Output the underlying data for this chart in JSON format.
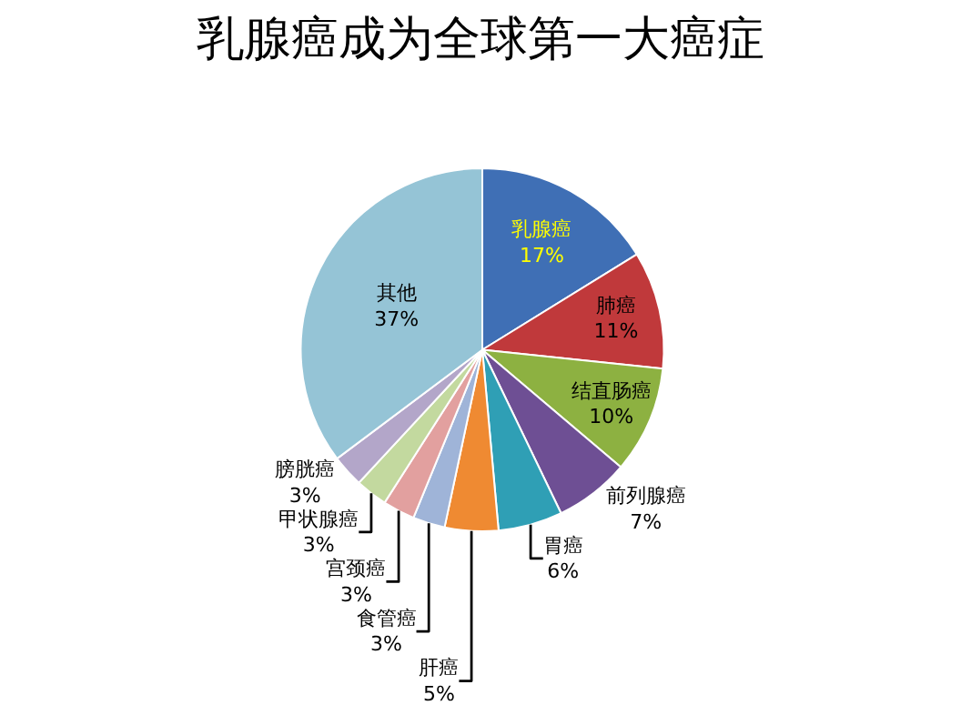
{
  "chart_data": {
    "type": "pie",
    "title": "乳腺癌成为全球第一大癌症",
    "categories": [
      "乳腺癌",
      "肺癌",
      "结直肠癌",
      "前列腺癌",
      "胃癌",
      "肝癌",
      "食管癌",
      "宫颈癌",
      "甲状腺癌",
      "膀胱癌",
      "其他"
    ],
    "values": [
      17,
      11,
      10,
      7,
      6,
      5,
      3,
      3,
      3,
      3,
      37
    ],
    "value_labels": [
      "17%",
      "11%",
      "10%",
      "7%",
      "6%",
      "5%",
      "3%",
      "3%",
      "3%",
      "3%",
      "37%"
    ],
    "colors": [
      "#3f6fb5",
      "#c0393b",
      "#8db141",
      "#6e4f94",
      "#2f9fb5",
      "#ef8a32",
      "#9fb4d8",
      "#e2a09f",
      "#c3d99f",
      "#b3a6c9",
      "#95c4d6"
    ],
    "legend": false
  }
}
